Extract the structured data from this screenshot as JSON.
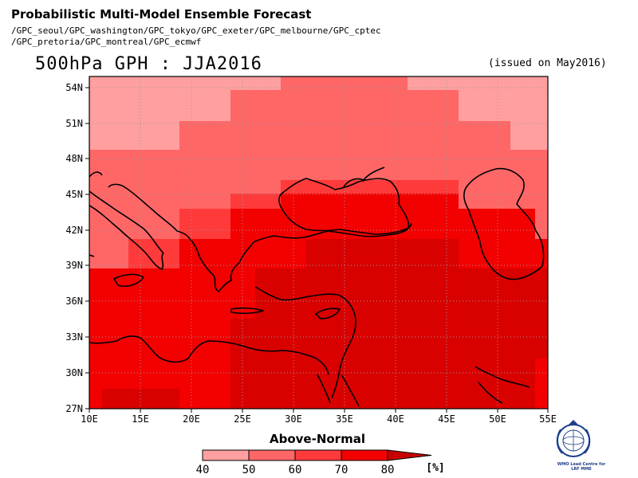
{
  "header": {
    "title": "Probabilistic Multi-Model Ensemble Forecast",
    "sources_line1": "/GPC_seoul/GPC_washington/GPC_tokyo/GPC_exeter/GPC_melbourne/GPC_cptec",
    "sources_line2": "/GPC_pretoria/GPC_montreal/GPC_ecmwf"
  },
  "map": {
    "title": "500hPa GPH : JJA2016",
    "issued": "(issued on May2016)",
    "lon_ticks": [
      "10E",
      "15E",
      "20E",
      "25E",
      "30E",
      "35E",
      "40E",
      "45E",
      "50E",
      "55E"
    ],
    "lat_ticks": [
      "27N",
      "30N",
      "33N",
      "36N",
      "39N",
      "42N",
      "45N",
      "48N",
      "51N",
      "54N"
    ],
    "lon_range": [
      10,
      55
    ],
    "lat_range": [
      27,
      55
    ]
  },
  "legend": {
    "title": "Above-Normal",
    "labels": [
      "40",
      "50",
      "60",
      "70",
      "80"
    ],
    "unit": "[%]",
    "colors": [
      "#ff9f9f",
      "#ff6767",
      "#ff3a3a",
      "#f30000",
      "#c80000"
    ]
  },
  "logo": {
    "caption_line1": "WMO Lead Centre for",
    "caption_line2": "LRF MME"
  },
  "colors": {
    "ocean": "#ffffff",
    "frame": "#000000"
  }
}
